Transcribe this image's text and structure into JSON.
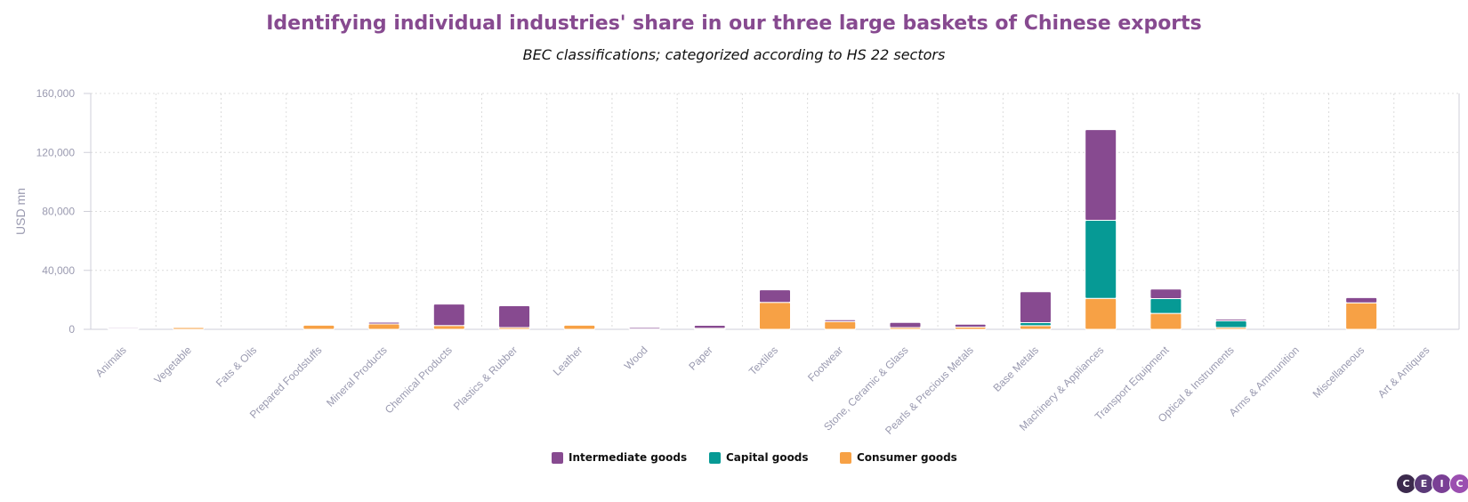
{
  "chart_data": {
    "type": "bar",
    "stacked": true,
    "title": "Identifying individual industries' share in our three large baskets of Chinese exports",
    "subtitle": "BEC classifications; categorized according to HS 22 sectors",
    "ylabel": "USD mn",
    "xlabel": "",
    "ylim": [
      0,
      160000
    ],
    "yticks": [
      0,
      40000,
      80000,
      120000,
      160000
    ],
    "ytick_labels": [
      "0",
      "40,000",
      "80,000",
      "120,000",
      "160,000"
    ],
    "grid": true,
    "legend_position": "bottom-center",
    "categories": [
      "Animals",
      "Vegetable",
      "Fats & Oils",
      "Prepared Foodstuffs",
      "Mineral Products",
      "Chemical Products",
      "Plastics & Rubber",
      "Leather",
      "Wood",
      "Paper",
      "Textiles",
      "Footwear",
      "Stone, Ceramic & Glass",
      "Pearls & Precious Metals",
      "Base Metals",
      "Machinery & Appliances",
      "Transport Equipment",
      "Optical & Instruments",
      "Arms & Ammunition",
      "Miscellaneous",
      "Art & Antiques"
    ],
    "series": [
      {
        "name": "Consumer goods",
        "color": "#f7a145",
        "values": [
          500,
          1200,
          0,
          2800,
          3600,
          2600,
          1200,
          2800,
          200,
          700,
          18300,
          5300,
          1200,
          1500,
          2500,
          21000,
          10800,
          1200,
          0,
          18000,
          0
        ]
      },
      {
        "name": "Capital goods",
        "color": "#069a95",
        "values": [
          0,
          0,
          0,
          0,
          0,
          0,
          0,
          0,
          0,
          0,
          0,
          0,
          0,
          0,
          2000,
          53000,
          10000,
          4500,
          0,
          0,
          0
        ]
      },
      {
        "name": "Intermediate goods",
        "color": "#874a90",
        "values": [
          200,
          0,
          0,
          0,
          1200,
          14500,
          14800,
          0,
          1000,
          2000,
          8500,
          1200,
          3500,
          2000,
          21000,
          61500,
          6500,
          1200,
          0,
          3500,
          0
        ]
      }
    ]
  },
  "legend": {
    "items": [
      {
        "label": "Intermediate goods",
        "color": "#874a90"
      },
      {
        "label": "Capital goods",
        "color": "#069a95"
      },
      {
        "label": "Consumer goods",
        "color": "#f7a145"
      }
    ]
  },
  "logo": {
    "letters": [
      "C",
      "E",
      "I",
      "C"
    ],
    "colors": [
      "#3c2a4d",
      "#5b3a78",
      "#7a3f95",
      "#9b4fb0"
    ]
  }
}
